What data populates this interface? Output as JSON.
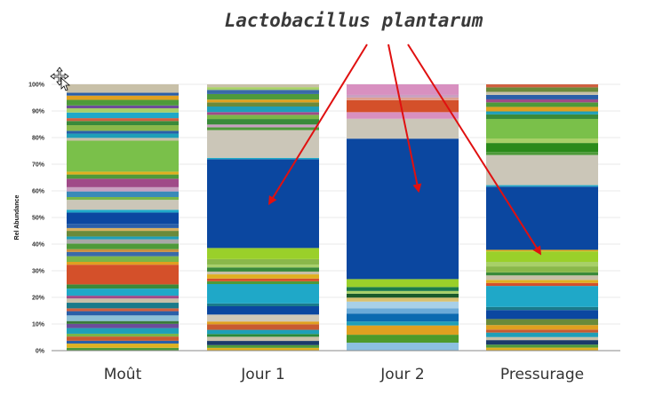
{
  "chart_data": {
    "type": "bar",
    "stacked": true,
    "title": "Lactobacillus plantarum",
    "ylabel": "Rel Abundance",
    "xlabel": "",
    "ylim": [
      0,
      100
    ],
    "yticks": [
      "0%",
      "10%",
      "20%",
      "30%",
      "40%",
      "50%",
      "60%",
      "70%",
      "80%",
      "90%",
      "100%"
    ],
    "categories": [
      "Moût",
      "Jour 1",
      "Jour  2",
      "Pressurage"
    ],
    "highlight_taxon": "Lactobacillus plantarum",
    "highlight_values": [
      4.0,
      32.0,
      53.0,
      21.0
    ],
    "segments": [
      [
        {
          "v": 1.0,
          "c": "#4e9a3a"
        },
        {
          "v": 1.5,
          "c": "#e0b020"
        },
        {
          "v": 1.0,
          "c": "#2a5fa8"
        },
        {
          "v": 1.5,
          "c": "#c85a30"
        },
        {
          "v": 1.0,
          "c": "#7ab648"
        },
        {
          "v": 2.0,
          "c": "#1f9fb8"
        },
        {
          "v": 1.5,
          "c": "#6c4c9a"
        },
        {
          "v": 1.0,
          "c": "#3a7a3a"
        },
        {
          "v": 2.0,
          "c": "#8cc0d8"
        },
        {
          "v": 1.5,
          "c": "#2a5fa8"
        },
        {
          "v": 1.0,
          "c": "#d06040"
        },
        {
          "v": 2.0,
          "c": "#1a7a8a"
        },
        {
          "v": 1.5,
          "c": "#c8c0a8"
        },
        {
          "v": 1.0,
          "c": "#a04a88"
        },
        {
          "v": 2.5,
          "c": "#1fa8c8"
        },
        {
          "v": 1.5,
          "c": "#3a8a3a"
        },
        {
          "v": 7.0,
          "c": "#d4502a"
        },
        {
          "v": 1.0,
          "c": "#e0a020"
        },
        {
          "v": 2.0,
          "c": "#7ab648"
        },
        {
          "v": 1.5,
          "c": "#3a6aa8"
        },
        {
          "v": 1.0,
          "c": "#c89040"
        },
        {
          "v": 2.0,
          "c": "#4e9a3a"
        },
        {
          "v": 1.5,
          "c": "#a8a8a8"
        },
        {
          "v": 1.0,
          "c": "#1f9fb8"
        },
        {
          "v": 2.0,
          "c": "#6a8a3a"
        },
        {
          "v": 1.0,
          "c": "#d8b060"
        },
        {
          "v": 1.5,
          "c": "#2a5fa8"
        },
        {
          "v": 4.0,
          "c": "#0b47a0"
        },
        {
          "v": 1.0,
          "c": "#1fa8c8"
        },
        {
          "v": 3.5,
          "c": "#cbc6b8"
        },
        {
          "v": 1.0,
          "c": "#7ab648"
        },
        {
          "v": 2.0,
          "c": "#3a8ab8"
        },
        {
          "v": 1.5,
          "c": "#c8a0c0"
        },
        {
          "v": 3.0,
          "c": "#a04a88"
        },
        {
          "v": 1.5,
          "c": "#4e9a3a"
        },
        {
          "v": 1.0,
          "c": "#e0b020"
        },
        {
          "v": 11.0,
          "c": "#7ac04a"
        },
        {
          "v": 1.0,
          "c": "#c8c0a8"
        },
        {
          "v": 1.5,
          "c": "#1f9fb8"
        },
        {
          "v": 1.0,
          "c": "#2a5fa8"
        },
        {
          "v": 2.0,
          "c": "#8ab84a"
        },
        {
          "v": 1.5,
          "c": "#3a8a3a"
        },
        {
          "v": 1.0,
          "c": "#d06040"
        },
        {
          "v": 2.0,
          "c": "#1fa8c8"
        },
        {
          "v": 1.5,
          "c": "#a8d068"
        },
        {
          "v": 1.0,
          "c": "#6c4c9a"
        },
        {
          "v": 2.0,
          "c": "#4e9a3a"
        },
        {
          "v": 1.5,
          "c": "#e0a020"
        },
        {
          "v": 1.0,
          "c": "#2a5fa8"
        },
        {
          "v": 3.0,
          "c": "#c8c0a8"
        }
      ],
      [
        {
          "v": 1.0,
          "c": "#e0b020"
        },
        {
          "v": 1.0,
          "c": "#4e9a3a"
        },
        {
          "v": 1.5,
          "c": "#1a3a6a"
        },
        {
          "v": 1.5,
          "c": "#c8c0a8"
        },
        {
          "v": 1.0,
          "c": "#2a8a3a"
        },
        {
          "v": 1.5,
          "c": "#1f9fb8"
        },
        {
          "v": 2.0,
          "c": "#c85a30"
        },
        {
          "v": 1.0,
          "c": "#e0a020"
        },
        {
          "v": 2.5,
          "c": "#d0c8b8"
        },
        {
          "v": 3.0,
          "c": "#0b47a0"
        },
        {
          "v": 1.0,
          "c": "#1a7a8a"
        },
        {
          "v": 7.0,
          "c": "#1fa8c8"
        },
        {
          "v": 1.0,
          "c": "#4e9a3a"
        },
        {
          "v": 1.0,
          "c": "#d4502a"
        },
        {
          "v": 1.5,
          "c": "#e0b020"
        },
        {
          "v": 1.0,
          "c": "#c8c0a8"
        },
        {
          "v": 1.5,
          "c": "#3a8a3a"
        },
        {
          "v": 1.0,
          "c": "#a8d068"
        },
        {
          "v": 2.0,
          "c": "#8ab84a"
        },
        {
          "v": 4.0,
          "c": "#9ad02a"
        },
        {
          "v": 32.0,
          "c": "#0b47a0"
        },
        {
          "v": 0.5,
          "c": "#1fa8c8"
        },
        {
          "v": 10.0,
          "c": "#cbc6b8"
        },
        {
          "v": 1.0,
          "c": "#4e9a3a"
        },
        {
          "v": 1.0,
          "c": "#c8a0c0"
        },
        {
          "v": 2.0,
          "c": "#3a8a3a"
        },
        {
          "v": 1.5,
          "c": "#7ab648"
        },
        {
          "v": 1.0,
          "c": "#a04a88"
        },
        {
          "v": 2.0,
          "c": "#1f9fb8"
        },
        {
          "v": 1.5,
          "c": "#6a8a3a"
        },
        {
          "v": 1.0,
          "c": "#e0a020"
        },
        {
          "v": 2.0,
          "c": "#4e9a3a"
        },
        {
          "v": 1.5,
          "c": "#3a6aa8"
        },
        {
          "v": 1.0,
          "c": "#a8d068"
        },
        {
          "v": 1.0,
          "c": "#c8c0a8"
        }
      ],
      [
        {
          "v": 3.0,
          "c": "#8cc0e0"
        },
        {
          "v": 3.0,
          "c": "#4e9a2a"
        },
        {
          "v": 3.5,
          "c": "#e0a020"
        },
        {
          "v": 1.5,
          "c": "#1f9fb8"
        },
        {
          "v": 3.0,
          "c": "#0b6ab0"
        },
        {
          "v": 2.0,
          "c": "#6aaad8"
        },
        {
          "v": 2.5,
          "c": "#a8d0e8"
        },
        {
          "v": 1.5,
          "c": "#d8c070"
        },
        {
          "v": 1.5,
          "c": "#1a5a2a"
        },
        {
          "v": 1.0,
          "c": "#a8d068"
        },
        {
          "v": 1.5,
          "c": "#1a7a4a"
        },
        {
          "v": 3.0,
          "c": "#9ad02a"
        },
        {
          "v": 53.0,
          "c": "#0b47a0"
        },
        {
          "v": 7.5,
          "c": "#cbc6b8"
        },
        {
          "v": 2.5,
          "c": "#d890c0"
        },
        {
          "v": 4.5,
          "c": "#d4502a"
        },
        {
          "v": 1.0,
          "c": "#e0a090"
        },
        {
          "v": 1.0,
          "c": "#c8a0c0"
        },
        {
          "v": 4.0,
          "c": "#d890c0"
        }
      ],
      [
        {
          "v": 1.0,
          "c": "#e0b020"
        },
        {
          "v": 1.0,
          "c": "#4e9a3a"
        },
        {
          "v": 1.5,
          "c": "#1a3a6a"
        },
        {
          "v": 1.0,
          "c": "#c8c0a8"
        },
        {
          "v": 1.5,
          "c": "#1f9fb8"
        },
        {
          "v": 1.0,
          "c": "#c85a30"
        },
        {
          "v": 1.5,
          "c": "#e0a020"
        },
        {
          "v": 2.0,
          "c": "#6a8a3a"
        },
        {
          "v": 3.0,
          "c": "#0b47a0"
        },
        {
          "v": 1.0,
          "c": "#1a7a8a"
        },
        {
          "v": 7.0,
          "c": "#1fa8c8"
        },
        {
          "v": 1.0,
          "c": "#d4502a"
        },
        {
          "v": 1.0,
          "c": "#e0b020"
        },
        {
          "v": 1.5,
          "c": "#c8c0a8"
        },
        {
          "v": 1.0,
          "c": "#3a8a3a"
        },
        {
          "v": 2.0,
          "c": "#8ab84a"
        },
        {
          "v": 1.5,
          "c": "#a8d068"
        },
        {
          "v": 3.5,
          "c": "#9ad02a"
        },
        {
          "v": 0.5,
          "c": "#e0b020"
        },
        {
          "v": 21.0,
          "c": "#0b47a0"
        },
        {
          "v": 0.5,
          "c": "#1fa8c8"
        },
        {
          "v": 10.0,
          "c": "#cbc6b8"
        },
        {
          "v": 1.0,
          "c": "#4e9a3a"
        },
        {
          "v": 3.0,
          "c": "#2a8a1a"
        },
        {
          "v": 1.5,
          "c": "#a8d068"
        },
        {
          "v": 6.5,
          "c": "#7ac04a"
        },
        {
          "v": 1.5,
          "c": "#3a8a3a"
        },
        {
          "v": 1.0,
          "c": "#1f9fb8"
        },
        {
          "v": 1.5,
          "c": "#e0a020"
        },
        {
          "v": 1.5,
          "c": "#4e9a3a"
        },
        {
          "v": 1.0,
          "c": "#a04a88"
        },
        {
          "v": 1.5,
          "c": "#2a5fa8"
        },
        {
          "v": 1.0,
          "c": "#c8c0a8"
        },
        {
          "v": 1.5,
          "c": "#6a8a3a"
        },
        {
          "v": 1.0,
          "c": "#d06040"
        }
      ]
    ]
  }
}
